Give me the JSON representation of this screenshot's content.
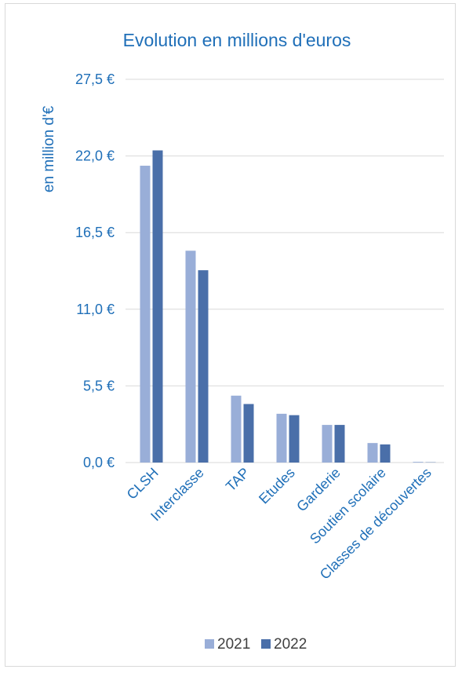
{
  "chart_data": {
    "type": "bar",
    "title": "Evolution en millions d'euros",
    "xlabel": "",
    "ylabel": "en million d'€",
    "ylim": [
      0,
      27.5
    ],
    "yticks": [
      0,
      5.5,
      11,
      16.5,
      22,
      27.5
    ],
    "ytick_labels": [
      "0,0 €",
      "5,5 €",
      "11,0 €",
      "16,5 €",
      "22,0 €",
      "27,5 €"
    ],
    "grid": true,
    "legend_position": "bottom",
    "categories": [
      "CLSH",
      "Interclasse",
      "TAP",
      "Etudes",
      "Garderie",
      "Soutien scolaire",
      "Classes de découvertes"
    ],
    "series": [
      {
        "name": "2021",
        "color": "#99aed8",
        "values": [
          21.3,
          15.2,
          4.8,
          3.5,
          2.7,
          1.4,
          0.05
        ]
      },
      {
        "name": "2022",
        "color": "#4a6fa9",
        "values": [
          22.4,
          13.8,
          4.2,
          3.4,
          2.7,
          1.3,
          0.02
        ]
      }
    ]
  }
}
